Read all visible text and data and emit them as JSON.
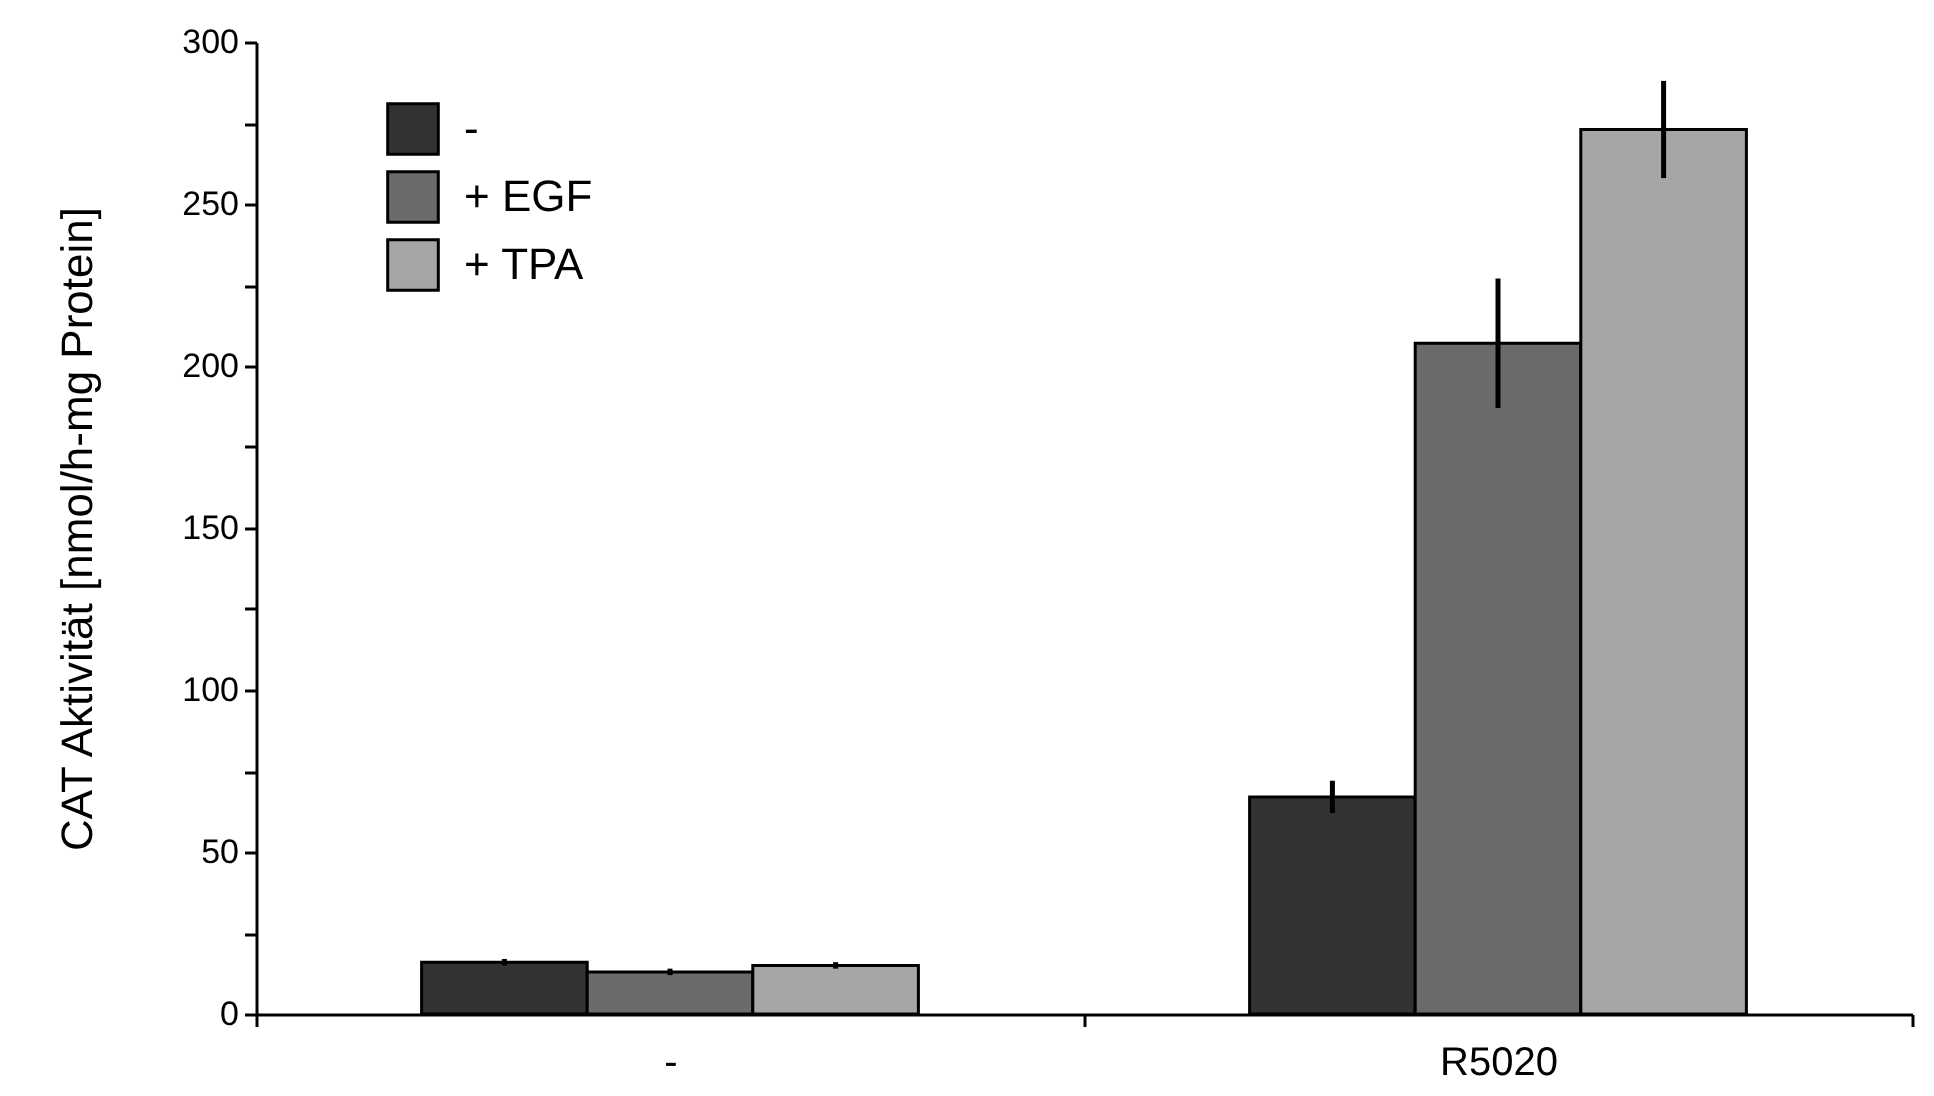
{
  "chart_data": {
    "type": "bar",
    "ylabel": "CAT Aktivität [nmol/h-mg Protein]",
    "categories": [
      "-",
      "R5020"
    ],
    "series": [
      {
        "name": "-",
        "color": "#333333",
        "values": [
          16,
          67
        ],
        "errors": [
          1,
          5
        ]
      },
      {
        "name": "+ EGF",
        "color": "#6b6b6b",
        "values": [
          13,
          207
        ],
        "errors": [
          1,
          20
        ]
      },
      {
        "name": "+ TPA",
        "color": "#a6a6a6",
        "values": [
          15,
          273
        ],
        "errors": [
          1,
          15
        ]
      }
    ],
    "ylim": [
      0,
      300
    ],
    "yticks": [
      0,
      {
        "value": 25,
        "label": null
      },
      50,
      {
        "value": 75,
        "label": null
      },
      100,
      {
        "value": 125,
        "label": null
      },
      150,
      {
        "value": 175,
        "label": null
      },
      200,
      {
        "value": 225,
        "label": null
      },
      250,
      {
        "value": 275,
        "label": null
      },
      300
    ],
    "legend": "top left"
  }
}
